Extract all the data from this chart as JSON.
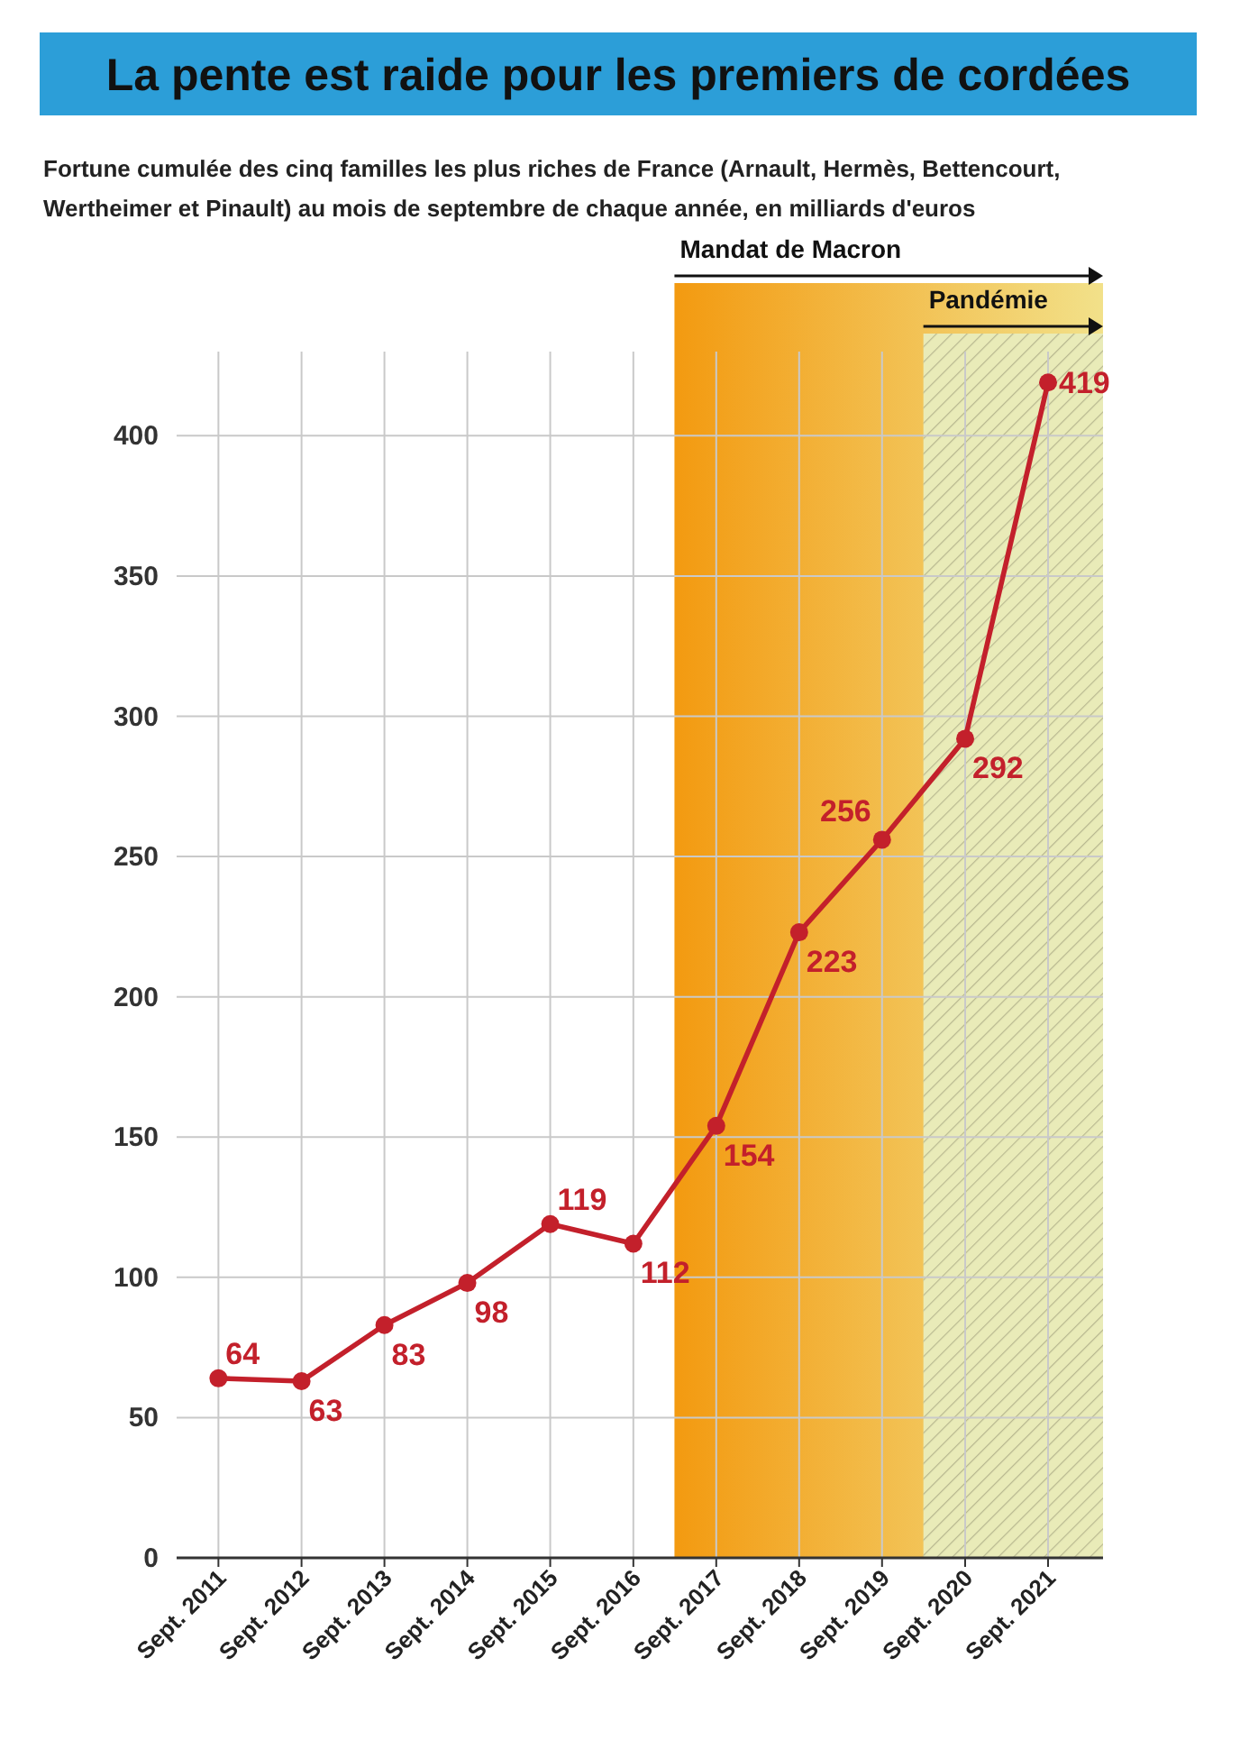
{
  "chart_data": {
    "type": "line",
    "title": "La pente est raide pour les premiers de cordées",
    "subtitle": "Fortune cumulée des cinq familles les plus riches de France (Arnault, Hermès, Bettencourt, Wertheimer et Pinault) au mois de septembre de chaque année, en milliards d'euros",
    "x": [
      "2011-09",
      "2012-09",
      "2013-09",
      "2014-09",
      "2015-09",
      "2016-09",
      "2017-09",
      "2018-09",
      "2019-09",
      "2020-09",
      "2021-09"
    ],
    "series": [
      {
        "color": "#c3202b",
        "values": [
          64,
          63,
          83,
          98,
          119,
          112,
          154,
          223,
          256,
          292,
          419
        ]
      }
    ],
    "data_labels": true,
    "marker": "circle",
    "grid": true,
    "xlim": [
      "2011-03",
      "2022-05"
    ],
    "xticks": [
      {
        "value": "2011-09",
        "label": "Sept. 2011"
      },
      {
        "value": "2012-09",
        "label": "Sept. 2012"
      },
      {
        "value": "2013-09",
        "label": "Sept. 2013"
      },
      {
        "value": "2014-09",
        "label": "Sept. 2014"
      },
      {
        "value": "2015-09",
        "label": "Sept. 2015"
      },
      {
        "value": "2016-09",
        "label": "Sept. 2016"
      },
      {
        "value": "2017-09",
        "label": "Sept. 2017"
      },
      {
        "value": "2018-09",
        "label": "Sept. 2018"
      },
      {
        "value": "2019-09",
        "label": "Sept. 2019"
      },
      {
        "value": "2020-09",
        "label": "Sept. 2020"
      },
      {
        "value": "2021-09",
        "label": "Sept. 2021"
      }
    ],
    "ylim": [
      0,
      430
    ],
    "yticks": [
      0,
      50,
      100,
      150,
      200,
      250,
      300,
      350,
      400
    ],
    "bands": [
      {
        "axis": "x",
        "from": "2017-03",
        "to": "2022-05",
        "label": "Mandat de Macron",
        "color": "#f39a10"
      },
      {
        "axis": "x",
        "from": "2020-03",
        "to": "2022-05",
        "label": "Pandémie",
        "color": "#e9ebb8"
      }
    ]
  }
}
